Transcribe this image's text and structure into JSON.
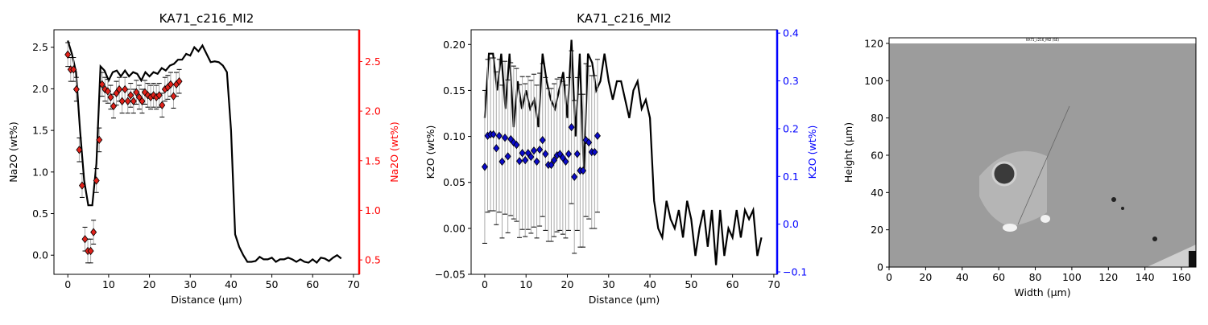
{
  "chart_data": [
    {
      "type": "dual_profile",
      "title": "KA71_c216_MI2",
      "xlabel": "Distance (µm)",
      "ylabel": "Na2O (wt%)",
      "y2label": "Na2O (wt%)",
      "y2color": "#ff0000",
      "xlim": [
        -3.4,
        71.4
      ],
      "xticks": [
        0,
        10,
        20,
        30,
        40,
        50,
        60,
        70
      ],
      "ylim": [
        -0.23,
        2.71
      ],
      "yticks": [
        {
          "value": 0,
          "label": "0.0"
        },
        0.5,
        {
          "value": 1,
          "label": "1.0"
        },
        1.5,
        {
          "value": 2,
          "label": "2.0"
        },
        2.5
      ],
      "y2lim": [
        0.355,
        2.82
      ],
      "y2ticks": [
        0.5,
        {
          "value": 1,
          "label": "1.0"
        },
        1.5,
        {
          "value": 2,
          "label": "2.0"
        },
        2.5
      ],
      "series": [
        {
          "kind": "line",
          "color": "#000000",
          "x": [
            0,
            1,
            2,
            3,
            4,
            5,
            6,
            7,
            8,
            9,
            10,
            11,
            12,
            13,
            14,
            15,
            16,
            17,
            18,
            19,
            20,
            21,
            22,
            23,
            24,
            25,
            26,
            27,
            28,
            29,
            30,
            31,
            32,
            33,
            34,
            35,
            36,
            37,
            38,
            39,
            40,
            41,
            42,
            43,
            44,
            45,
            46,
            47,
            48,
            49,
            50,
            51,
            52,
            53,
            54,
            55,
            56,
            57,
            58,
            59,
            60,
            61,
            62,
            63,
            64,
            65,
            66,
            67
          ],
          "values": [
            2.58,
            2.42,
            2.2,
            1.5,
            0.9,
            0.6,
            0.6,
            1.1,
            2.27,
            2.22,
            2.1,
            2.2,
            2.22,
            2.15,
            2.22,
            2.15,
            2.2,
            2.18,
            2.1,
            2.2,
            2.15,
            2.2,
            2.18,
            2.25,
            2.22,
            2.28,
            2.3,
            2.35,
            2.35,
            2.42,
            2.4,
            2.5,
            2.45,
            2.52,
            2.42,
            2.32,
            2.33,
            2.32,
            2.28,
            2.2,
            1.5,
            0.25,
            0.1,
            0.0,
            -0.08,
            -0.08,
            -0.07,
            -0.02,
            -0.05,
            -0.05,
            -0.03,
            -0.08,
            -0.05,
            -0.05,
            -0.03,
            -0.05,
            -0.08,
            -0.05,
            -0.08,
            -0.09,
            -0.05,
            -0.09,
            -0.03,
            -0.04,
            -0.07,
            -0.03,
            0.0,
            -0.04
          ]
        },
        {
          "kind": "points",
          "axis": "y2",
          "color": "#e0211a",
          "error": 0.12,
          "x": [
            0,
            0.7,
            1.4,
            2.1,
            2.8,
            3.5,
            4.2,
            4.9,
            5.6,
            6.3,
            7,
            7.7,
            8.4,
            9.1,
            9.8,
            10.5,
            11.2,
            11.9,
            12.6,
            13.3,
            14,
            14.7,
            15.4,
            16.1,
            16.8,
            17.5,
            18.2,
            18.9,
            19.6,
            20.3,
            21,
            21.7,
            22.4,
            23.1,
            23.8,
            24.5,
            25.2,
            25.9,
            26.6,
            27.3
          ],
          "values": [
            2.57,
            2.42,
            2.42,
            2.22,
            1.61,
            1.25,
            0.71,
            0.59,
            0.59,
            0.78,
            1.3,
            1.71,
            2.27,
            2.22,
            2.2,
            2.14,
            2.05,
            2.18,
            2.22,
            2.1,
            2.22,
            2.1,
            2.16,
            2.1,
            2.19,
            2.14,
            2.1,
            2.19,
            2.16,
            2.14,
            2.16,
            2.14,
            2.16,
            2.06,
            2.22,
            2.24,
            2.27,
            2.15,
            2.27,
            2.3
          ]
        }
      ]
    },
    {
      "type": "dual_profile",
      "title": "KA71_c216_MI2",
      "xlabel": "Distance (µm)",
      "ylabel": "K2O (wt%)",
      "y2label": "K2O (wt%)",
      "y2color": "#0000ff",
      "xlim": [
        -3.3,
        70.8
      ],
      "xticks": [
        0,
        10,
        20,
        30,
        40,
        50,
        60,
        70
      ],
      "ylim": [
        -0.05,
        0.216
      ],
      "yticks": [
        {
          "value": -0.05,
          "label": "−0.05"
        },
        {
          "value": 0,
          "label": "0.00"
        },
        0.05,
        {
          "value": 0.1,
          "label": "0.10"
        },
        0.15,
        {
          "value": 0.2,
          "label": "0.20"
        }
      ],
      "y2lim": [
        -0.105,
        0.407
      ],
      "y2ticks": [
        {
          "value": -0.1,
          "label": "−0.1"
        },
        {
          "value": 0,
          "label": "0.0"
        },
        0.1,
        0.2,
        0.3,
        0.4
      ],
      "series": [
        {
          "kind": "line",
          "color": "#000000",
          "x": [
            0,
            1,
            2,
            3,
            4,
            5,
            6,
            7,
            8,
            9,
            10,
            11,
            12,
            13,
            14,
            15,
            16,
            17,
            18,
            19,
            20,
            21,
            22,
            23,
            24,
            25,
            26,
            27,
            28,
            29,
            30,
            31,
            32,
            33,
            34,
            35,
            36,
            37,
            38,
            39,
            40,
            41,
            42,
            43,
            44,
            45,
            46,
            47,
            48,
            49,
            50,
            51,
            52,
            53,
            54,
            55,
            56,
            57,
            58,
            59,
            60,
            61,
            62,
            63,
            64,
            65,
            66,
            67
          ],
          "values": [
            0.12,
            0.19,
            0.19,
            0.15,
            0.19,
            0.13,
            0.19,
            0.11,
            0.16,
            0.13,
            0.15,
            0.13,
            0.14,
            0.11,
            0.19,
            0.16,
            0.14,
            0.13,
            0.15,
            0.17,
            0.12,
            0.205,
            0.1,
            0.19,
            0.06,
            0.19,
            0.18,
            0.15,
            0.16,
            0.19,
            0.16,
            0.14,
            0.16,
            0.16,
            0.14,
            0.12,
            0.15,
            0.16,
            0.13,
            0.14,
            0.12,
            0.03,
            0.0,
            -0.01,
            0.03,
            0.01,
            0.0,
            0.02,
            -0.01,
            0.03,
            0.01,
            -0.03,
            0.0,
            0.02,
            -0.02,
            0.02,
            -0.04,
            0.02,
            -0.03,
            0.0,
            -0.01,
            0.02,
            -0.01,
            0.02,
            0.01,
            0.02,
            -0.03,
            -0.01
          ]
        },
        {
          "kind": "points",
          "axis": "y2",
          "color": "#0a0ac8",
          "error": 0.16,
          "x": [
            0,
            0.7,
            1.4,
            2.1,
            2.8,
            3.5,
            4.2,
            4.9,
            5.6,
            6.3,
            7,
            7.7,
            8.4,
            9.1,
            9.8,
            10.5,
            11.2,
            11.9,
            12.6,
            13.3,
            14,
            14.7,
            15.4,
            16.1,
            16.8,
            17.5,
            18.2,
            18.9,
            19.6,
            20.3,
            21,
            21.7,
            22.4,
            23.1,
            23.8,
            24.5,
            25.2,
            25.9,
            26.6,
            27.3
          ],
          "values": [
            0.12,
            0.185,
            0.188,
            0.188,
            0.159,
            0.185,
            0.131,
            0.181,
            0.142,
            0.178,
            0.171,
            0.166,
            0.132,
            0.149,
            0.134,
            0.149,
            0.141,
            0.154,
            0.131,
            0.156,
            0.176,
            0.147,
            0.124,
            0.124,
            0.134,
            0.144,
            0.147,
            0.139,
            0.131,
            0.147,
            0.203,
            0.099,
            0.147,
            0.112,
            0.112,
            0.176,
            0.171,
            0.151,
            0.151,
            0.185
          ]
        }
      ]
    },
    {
      "type": "image",
      "xlabel": "Width (µm)",
      "ylabel": "Height (µm)",
      "annotation": "KA71_c216_MI2 (SE)",
      "xlim": [
        0,
        167.9
      ],
      "xticks": [
        0,
        20,
        40,
        60,
        80,
        100,
        120,
        140,
        160
      ],
      "ylim": [
        0,
        123
      ],
      "yticks": [
        0,
        20,
        40,
        60,
        80,
        100,
        120
      ],
      "image_extent": [
        0,
        167.9,
        0,
        120
      ]
    }
  ]
}
